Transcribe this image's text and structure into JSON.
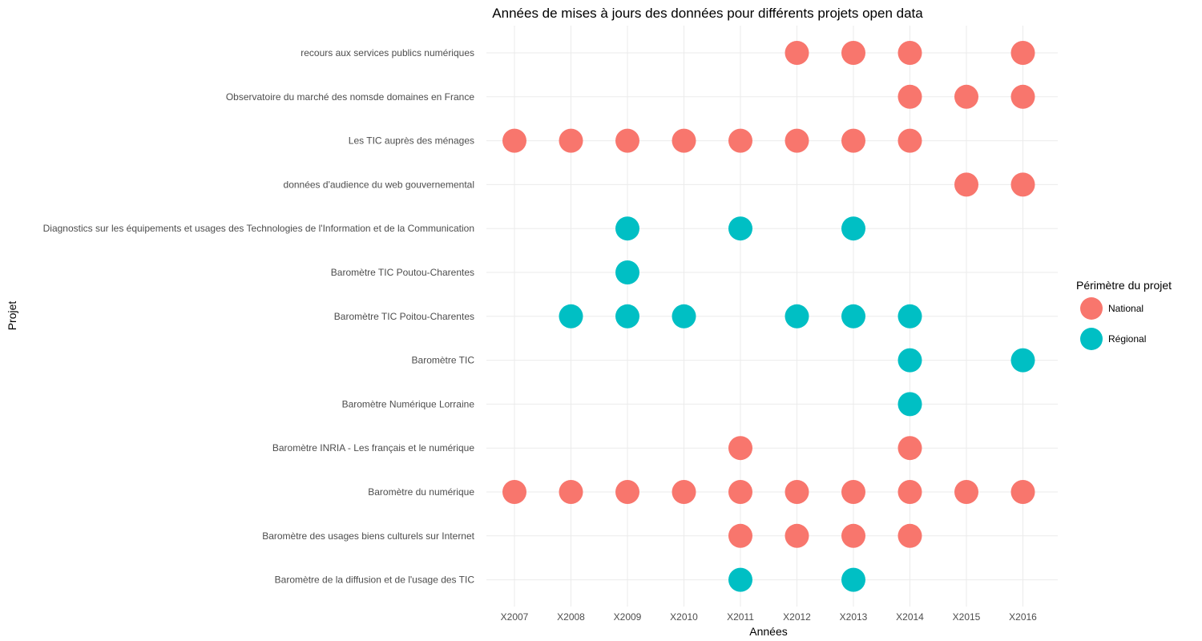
{
  "chart_data": {
    "type": "scatter",
    "title": "Années de mises à jours des données pour différents projets open data",
    "xlabel": "Années",
    "ylabel": "Projet",
    "grid": true,
    "legend_position": "right",
    "x_categories": [
      "X2007",
      "X2008",
      "X2009",
      "X2010",
      "X2011",
      "X2012",
      "X2013",
      "X2014",
      "X2015",
      "X2016"
    ],
    "y_categories": [
      "recours aux services publics numériques",
      "Observatoire du marché des nomsde domaines en France",
      "Les TIC auprès des ménages",
      "données d'audience du web gouvernemental",
      "Diagnostics sur les équipements et usages des Technologies de l'Information et de la Communication",
      "Baromètre TIC Poutou-Charentes",
      "Baromètre TIC Poitou-Charentes",
      "Baromètre TIC ",
      "Baromètre Numérique Lorraine",
      "Baromètre INRIA - Les français et le numérique",
      "Baromètre du numérique",
      "Baromètre des usages biens culturels sur Internet",
      "Baromètre de la diffusion et de l'usage des TIC"
    ],
    "legend": {
      "title": "Périmètre du projet",
      "items": [
        {
          "name": "National",
          "color": "#F8766D"
        },
        {
          "name": "Régional",
          "color": "#00BFC4"
        }
      ]
    },
    "series": [
      {
        "name": "National",
        "color": "#F8766D",
        "points": [
          {
            "x": "X2012",
            "y": "recours aux services publics numériques"
          },
          {
            "x": "X2013",
            "y": "recours aux services publics numériques"
          },
          {
            "x": "X2014",
            "y": "recours aux services publics numériques"
          },
          {
            "x": "X2016",
            "y": "recours aux services publics numériques"
          },
          {
            "x": "X2014",
            "y": "Observatoire du marché des nomsde domaines en France"
          },
          {
            "x": "X2015",
            "y": "Observatoire du marché des nomsde domaines en France"
          },
          {
            "x": "X2016",
            "y": "Observatoire du marché des nomsde domaines en France"
          },
          {
            "x": "X2007",
            "y": "Les TIC auprès des ménages"
          },
          {
            "x": "X2008",
            "y": "Les TIC auprès des ménages"
          },
          {
            "x": "X2009",
            "y": "Les TIC auprès des ménages"
          },
          {
            "x": "X2010",
            "y": "Les TIC auprès des ménages"
          },
          {
            "x": "X2011",
            "y": "Les TIC auprès des ménages"
          },
          {
            "x": "X2012",
            "y": "Les TIC auprès des ménages"
          },
          {
            "x": "X2013",
            "y": "Les TIC auprès des ménages"
          },
          {
            "x": "X2014",
            "y": "Les TIC auprès des ménages"
          },
          {
            "x": "X2015",
            "y": "données d'audience du web gouvernemental"
          },
          {
            "x": "X2016",
            "y": "données d'audience du web gouvernemental"
          },
          {
            "x": "X2011",
            "y": "Baromètre INRIA - Les français et le numérique"
          },
          {
            "x": "X2014",
            "y": "Baromètre INRIA - Les français et le numérique"
          },
          {
            "x": "X2007",
            "y": "Baromètre du numérique"
          },
          {
            "x": "X2008",
            "y": "Baromètre du numérique"
          },
          {
            "x": "X2009",
            "y": "Baromètre du numérique"
          },
          {
            "x": "X2010",
            "y": "Baromètre du numérique"
          },
          {
            "x": "X2011",
            "y": "Baromètre du numérique"
          },
          {
            "x": "X2012",
            "y": "Baromètre du numérique"
          },
          {
            "x": "X2013",
            "y": "Baromètre du numérique"
          },
          {
            "x": "X2014",
            "y": "Baromètre du numérique"
          },
          {
            "x": "X2015",
            "y": "Baromètre du numérique"
          },
          {
            "x": "X2016",
            "y": "Baromètre du numérique"
          },
          {
            "x": "X2011",
            "y": "Baromètre des usages biens culturels sur Internet"
          },
          {
            "x": "X2012",
            "y": "Baromètre des usages biens culturels sur Internet"
          },
          {
            "x": "X2013",
            "y": "Baromètre des usages biens culturels sur Internet"
          },
          {
            "x": "X2014",
            "y": "Baromètre des usages biens culturels sur Internet"
          }
        ]
      },
      {
        "name": "Régional",
        "color": "#00BFC4",
        "points": [
          {
            "x": "X2009",
            "y": "Diagnostics sur les équipements et usages des Technologies de l'Information et de la Communication"
          },
          {
            "x": "X2011",
            "y": "Diagnostics sur les équipements et usages des Technologies de l'Information et de la Communication"
          },
          {
            "x": "X2013",
            "y": "Diagnostics sur les équipements et usages des Technologies de l'Information et de la Communication"
          },
          {
            "x": "X2009",
            "y": "Baromètre TIC Poutou-Charentes"
          },
          {
            "x": "X2008",
            "y": "Baromètre TIC Poitou-Charentes"
          },
          {
            "x": "X2009",
            "y": "Baromètre TIC Poitou-Charentes"
          },
          {
            "x": "X2010",
            "y": "Baromètre TIC Poitou-Charentes"
          },
          {
            "x": "X2012",
            "y": "Baromètre TIC Poitou-Charentes"
          },
          {
            "x": "X2013",
            "y": "Baromètre TIC Poitou-Charentes"
          },
          {
            "x": "X2014",
            "y": "Baromètre TIC Poitou-Charentes"
          },
          {
            "x": "X2014",
            "y": "Baromètre TIC "
          },
          {
            "x": "X2016",
            "y": "Baromètre TIC "
          },
          {
            "x": "X2014",
            "y": "Baromètre Numérique Lorraine"
          },
          {
            "x": "X2011",
            "y": "Baromètre de la diffusion et de l'usage des TIC"
          },
          {
            "x": "X2013",
            "y": "Baromètre de la diffusion et de l'usage des TIC"
          }
        ]
      }
    ]
  }
}
